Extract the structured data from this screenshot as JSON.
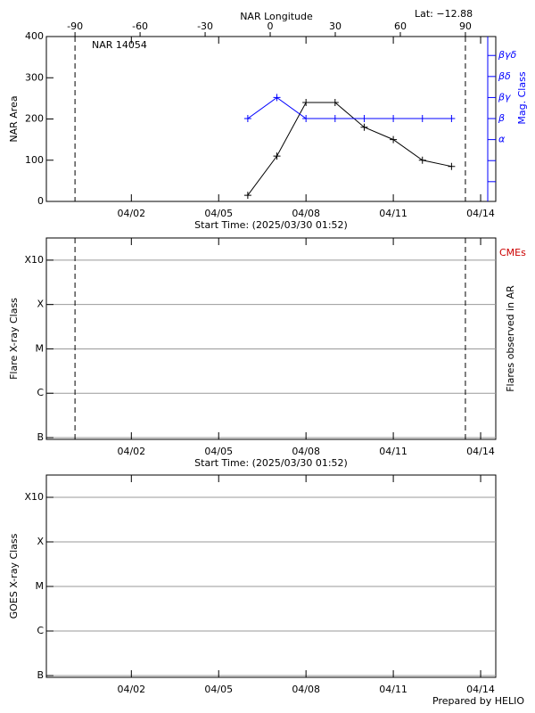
{
  "chart_data": [
    {
      "type": "line",
      "title": "NAR 14054",
      "annotation": "Lat: −12.88",
      "x2label": "NAR Longitude",
      "xlabel": "Start Time: (2025/03/30 01:52)",
      "ylabel": "NAR Area",
      "y2label": "Mag. Class",
      "xlim": [
        0.08,
        15.52
      ],
      "xticks": [
        {
          "value": 3,
          "label": "04/02"
        },
        {
          "value": 6,
          "label": "04/05"
        },
        {
          "value": 9,
          "label": "04/08"
        },
        {
          "value": 12,
          "label": "04/11"
        },
        {
          "value": 15,
          "label": "04/14"
        }
      ],
      "x2lim": [
        -103.2,
        104
      ],
      "x2ticks": [
        -90,
        -60,
        -30,
        0,
        30,
        60,
        90
      ],
      "ylim": [
        0,
        400
      ],
      "yticks": [
        0,
        100,
        200,
        300,
        400
      ],
      "y2lim": [
        0.06,
        7.9
      ],
      "y2ticks": [
        {
          "value": 1,
          "label": null
        },
        {
          "value": 2,
          "label": null
        },
        {
          "value": 3,
          "label": "α"
        },
        {
          "value": 4,
          "label": "β"
        },
        {
          "value": 5,
          "label": "βγ"
        },
        {
          "value": 6,
          "label": "βδ"
        },
        {
          "value": 7,
          "label": "βγδ"
        }
      ],
      "limb_lines": true,
      "grid": false,
      "series": [
        {
          "color": "#000000",
          "x": [
            7,
            8,
            9,
            10,
            11,
            12,
            13,
            14
          ],
          "values": [
            15,
            110,
            240,
            240,
            180,
            150,
            100,
            85
          ]
        },
        {
          "color": "#0000ff",
          "axis": "y2",
          "x": [
            7,
            8,
            9,
            10,
            11,
            12,
            13,
            14
          ],
          "values": [
            4,
            5,
            4,
            4,
            4,
            4,
            4,
            4
          ]
        }
      ]
    },
    {
      "type": "scatter",
      "xlabel": "Start Time: (2025/03/30 01:52)",
      "ylabel": "Flare X-ray Class",
      "y2label": "Flares observed in AR",
      "annotation": "CMEs",
      "annotation_color": "#cc0000",
      "xlim": [
        0.08,
        15.52
      ],
      "xticks": [
        {
          "value": 3,
          "label": "04/02"
        },
        {
          "value": 6,
          "label": "04/05"
        },
        {
          "value": 9,
          "label": "04/08"
        },
        {
          "value": 12,
          "label": "04/11"
        },
        {
          "value": 15,
          "label": "04/14"
        }
      ],
      "ylim": [
        -0.04,
        4.5
      ],
      "yticks": [
        {
          "value": 0,
          "label": "B"
        },
        {
          "value": 1,
          "label": "C"
        },
        {
          "value": 2,
          "label": "M"
        },
        {
          "value": 3,
          "label": "X"
        },
        {
          "value": 4,
          "label": "X10"
        }
      ],
      "limb_lines": true,
      "grid": true,
      "series": []
    },
    {
      "type": "scatter",
      "ylabel": "GOES X-ray Class",
      "footer": "Prepared by HELIO",
      "xlim": [
        0.08,
        15.52
      ],
      "xticks": [
        {
          "value": 3,
          "label": "04/02"
        },
        {
          "value": 6,
          "label": "04/05"
        },
        {
          "value": 9,
          "label": "04/08"
        },
        {
          "value": 12,
          "label": "04/11"
        },
        {
          "value": 15,
          "label": "04/14"
        }
      ],
      "ylim": [
        -0.04,
        4.5
      ],
      "yticks": [
        {
          "value": 0,
          "label": "B"
        },
        {
          "value": 1,
          "label": "C"
        },
        {
          "value": 2,
          "label": "M"
        },
        {
          "value": 3,
          "label": "X"
        },
        {
          "value": 4,
          "label": "X10"
        }
      ],
      "limb_lines": false,
      "grid": true,
      "series": []
    }
  ]
}
